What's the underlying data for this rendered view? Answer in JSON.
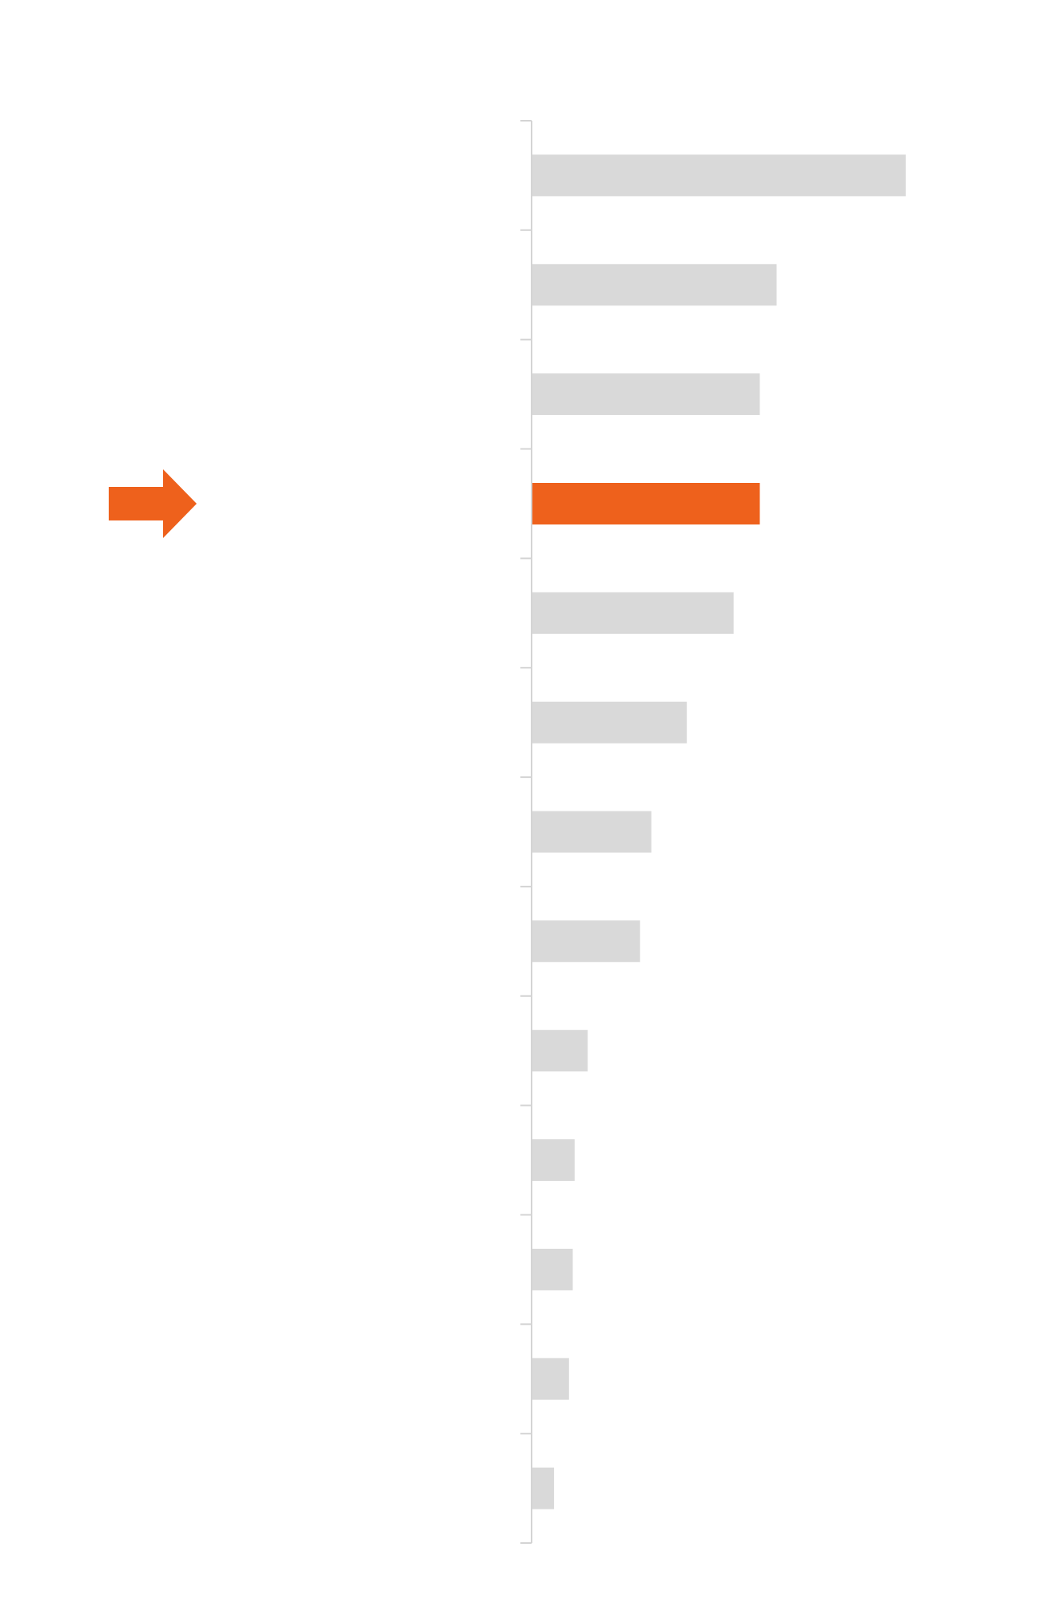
{
  "chart_data": {
    "type": "bar",
    "orientation": "horizontal",
    "categories": [
      "",
      "",
      "",
      "",
      "",
      "",
      "",
      "",
      "",
      "",
      "",
      "",
      ""
    ],
    "values": [
      100,
      65.5,
      61,
      61,
      54,
      41.5,
      32,
      29,
      15,
      11.5,
      11,
      10,
      6
    ],
    "highlight_index": 3,
    "title": "",
    "xlabel": "",
    "ylabel": "",
    "xlim": [
      0,
      100
    ],
    "grid": false,
    "legend": "none",
    "highlight_marker": "arrow-right-icon"
  },
  "colors": {
    "bar": "#d9d9d9",
    "highlight": "#ee611c",
    "axis": "#d4d4d4",
    "background": "#ffffff"
  }
}
